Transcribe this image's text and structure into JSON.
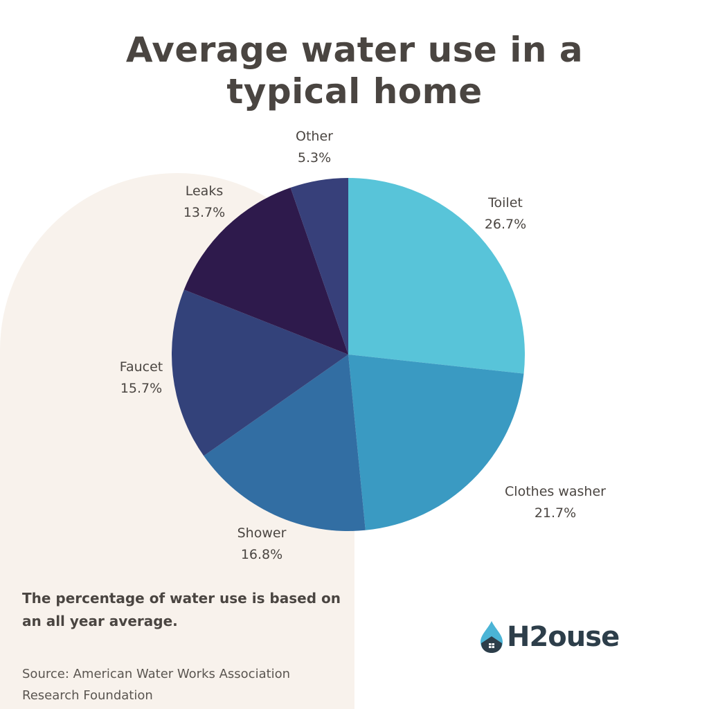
{
  "title": {
    "line1": "Average water use in a",
    "line2": "typical home"
  },
  "chart_data": {
    "type": "pie",
    "title": "Average water use in a typical home",
    "categories": [
      "Toilet",
      "Clothes washer",
      "Shower",
      "Faucet",
      "Leaks",
      "Other"
    ],
    "values": [
      26.7,
      21.7,
      16.8,
      15.7,
      13.7,
      5.3
    ],
    "unit": "%",
    "colors": [
      "#58c4d9",
      "#3a9ac2",
      "#326ea3",
      "#33427a",
      "#2e1a4c",
      "#37407a"
    ],
    "start_angle_deg": 0,
    "direction": "clockwise",
    "legend": "none (direct labels)"
  },
  "labels": [
    {
      "name": "Toilet",
      "value": "26.7%"
    },
    {
      "name": "Clothes washer",
      "value": "21.7%"
    },
    {
      "name": "Shower",
      "value": "16.8%"
    },
    {
      "name": "Faucet",
      "value": "15.7%"
    },
    {
      "name": "Leaks",
      "value": "13.7%"
    },
    {
      "name": "Other",
      "value": "5.3%"
    }
  ],
  "note": "The percentage of water use is based on an all year average.",
  "source": {
    "line1": "Source: American Water Works Association",
    "line2": "Research Foundation"
  },
  "logo": {
    "text": "H2ouse",
    "icon": "water-drop-house-icon",
    "colors": {
      "drop": "#4bb4d6",
      "house": "#2d3e4a",
      "text": "#2d3e4a"
    }
  },
  "colors": {
    "panel": "#f8f2ec",
    "text": "#4a4541",
    "background": "#ffffff"
  }
}
